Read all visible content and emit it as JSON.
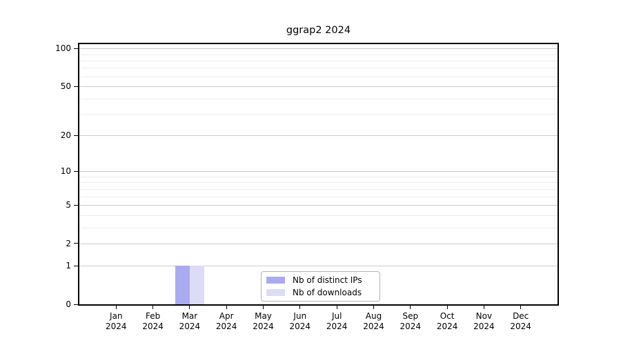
{
  "title": "ggrap2 2024",
  "chart_data": {
    "type": "bar",
    "title": "ggrap2 2024",
    "categories": [
      "Jan",
      "Feb",
      "Mar",
      "Apr",
      "May",
      "Jun",
      "Jul",
      "Aug",
      "Sep",
      "Oct",
      "Nov",
      "Dec"
    ],
    "category_subline": "2024",
    "series": [
      {
        "name": "Nb of distinct IPs",
        "color": "#aaaaf2",
        "values": [
          0,
          0,
          1,
          0,
          0,
          0,
          0,
          0,
          0,
          0,
          0,
          0
        ]
      },
      {
        "name": "Nb of downloads",
        "color": "#dcdcf7",
        "values": [
          0,
          0,
          1,
          0,
          0,
          0,
          0,
          0,
          0,
          0,
          0,
          0
        ]
      }
    ],
    "xlabel": "",
    "ylabel": "",
    "y_scale": "log1p",
    "ylim": [
      0,
      108
    ],
    "y_major_ticks": [
      0,
      1,
      2,
      5,
      10,
      20,
      50,
      100
    ],
    "y_minor_gridlines": [
      3,
      4,
      6,
      7,
      8,
      9,
      30,
      40,
      60,
      70,
      80,
      90
    ],
    "grid": "on",
    "legend_position": "bottom-center",
    "colors": {
      "grid_major": "#cbcbcb",
      "grid_minor": "#ececec",
      "spine": "#000000",
      "legend_border": "#b3b3b3"
    }
  }
}
